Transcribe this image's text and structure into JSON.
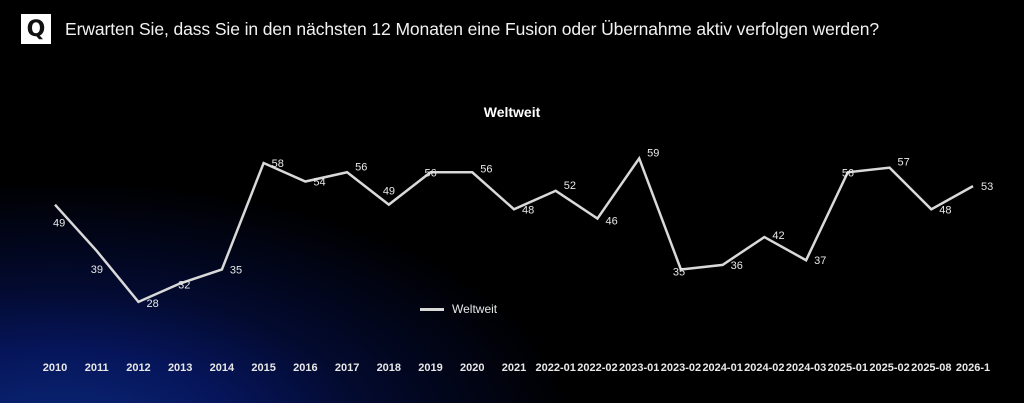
{
  "header": {
    "badge": "Q",
    "question": "Erwarten Sie, dass Sie in den nächsten 12 Monaten eine Fusion oder Übernahme aktiv verfolgen werden?"
  },
  "chart_data": {
    "type": "line",
    "title": "Weltweit",
    "xlabel": "",
    "ylabel": "",
    "grid": false,
    "legend_position": "bottom",
    "categories": [
      "2010",
      "2011",
      "2012",
      "2013",
      "2014",
      "2015",
      "2016",
      "2017",
      "2018",
      "2019",
      "2020",
      "2021",
      "2022-01",
      "2022-02",
      "2023-01",
      "2023-02",
      "2024-01",
      "2024-02",
      "2024-03",
      "2025-01",
      "2025-02",
      "2025-08",
      "2026-1"
    ],
    "series": [
      {
        "name": "Weltweit",
        "color": "#d9d9d9",
        "values": [
          49,
          39,
          28,
          32,
          35,
          58,
          54,
          56,
          49,
          56,
          56,
          48,
          52,
          46,
          59,
          35,
          36,
          42,
          37,
          56,
          57,
          48,
          53
        ]
      }
    ]
  },
  "legend": {
    "label": "Weltweit"
  },
  "colors": {
    "line": "#d9d9d9",
    "background_glow": "#0a2a7a"
  }
}
